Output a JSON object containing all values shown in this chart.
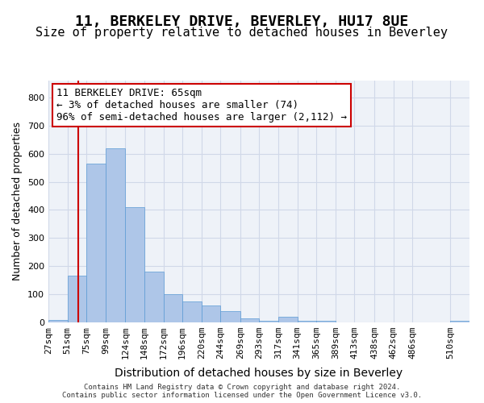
{
  "title1": "11, BERKELEY DRIVE, BEVERLEY, HU17 8UE",
  "title2": "Size of property relative to detached houses in Beverley",
  "xlabel": "Distribution of detached houses by size in Beverley",
  "ylabel": "Number of detached properties",
  "footer": "Contains HM Land Registry data © Crown copyright and database right 2024.\nContains public sector information licensed under the Open Government Licence v3.0.",
  "annotation_title": "11 BERKELEY DRIVE: 65sqm",
  "annotation_line2": "← 3% of detached houses are smaller (74)",
  "annotation_line3": "96% of semi-detached houses are larger (2,112) →",
  "bar_color": "#aec6e8",
  "bar_edge_color": "#5b9bd5",
  "annotation_box_color": "#ffffff",
  "annotation_box_edge": "#cc0000",
  "vline_color": "#cc0000",
  "vline_x": 65,
  "grid_color": "#d0d8e8",
  "bg_color": "#eef2f8",
  "categories": [
    "27sqm",
    "51sqm",
    "75sqm",
    "99sqm",
    "124sqm",
    "148sqm",
    "172sqm",
    "196sqm",
    "220sqm",
    "244sqm",
    "269sqm",
    "293sqm",
    "317sqm",
    "341sqm",
    "365sqm",
    "389sqm",
    "413sqm",
    "438sqm",
    "462sqm",
    "486sqm",
    "510sqm"
  ],
  "bin_edges": [
    27,
    51,
    75,
    99,
    124,
    148,
    172,
    196,
    220,
    244,
    269,
    293,
    317,
    341,
    365,
    389,
    413,
    438,
    462,
    486,
    534
  ],
  "values": [
    10,
    165,
    565,
    620,
    410,
    180,
    100,
    75,
    60,
    40,
    15,
    5,
    20,
    5,
    5,
    0,
    0,
    0,
    0,
    0,
    5
  ],
  "ylim": [
    0,
    860
  ],
  "yticks": [
    0,
    100,
    200,
    300,
    400,
    500,
    600,
    700,
    800
  ],
  "title_fontsize": 13,
  "subtitle_fontsize": 11,
  "xlabel_fontsize": 10,
  "ylabel_fontsize": 9,
  "tick_fontsize": 8,
  "annotation_fontsize": 9
}
